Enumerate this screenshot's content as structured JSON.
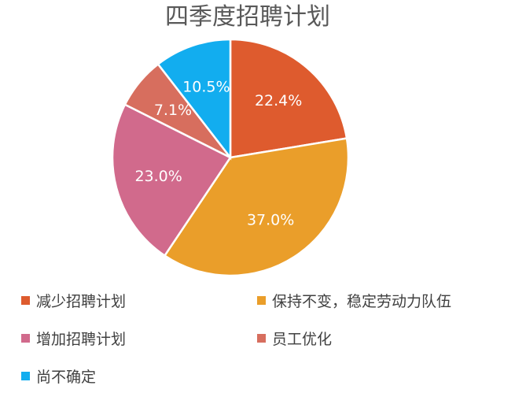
{
  "chart_data": {
    "type": "pie",
    "title": "四季度招聘计划",
    "slices": [
      {
        "label": "减少招聘计划",
        "value": 22.4,
        "display": "22.4%",
        "color": "#DE5B2E"
      },
      {
        "label": "保持不变，稳定劳动力队伍",
        "value": 37.0,
        "display": "37.0%",
        "color": "#EA9E2A"
      },
      {
        "label": "增加招聘计划",
        "value": 23.0,
        "display": "23.0%",
        "color": "#D16A8C"
      },
      {
        "label": "员工优化",
        "value": 7.1,
        "display": "7.1%",
        "color": "#D76E5E"
      },
      {
        "label": "尚不确定",
        "value": 10.5,
        "display": "10.5%",
        "color": "#12ADEF"
      }
    ],
    "legend_position": "bottom"
  }
}
